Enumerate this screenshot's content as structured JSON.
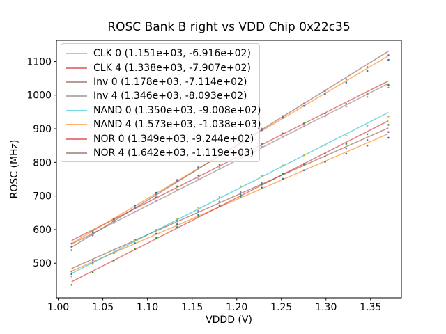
{
  "chart_data": {
    "type": "scatter",
    "title": "ROSC Bank B right vs VDD Chip 0x22c35",
    "xlabel": "VDDD (V)",
    "ylabel": "ROSC (MHz)",
    "xlim": [
      0.998,
      1.3845
    ],
    "ylim": [
      397,
      1163
    ],
    "grid": false,
    "legend_position": "upper left",
    "line_alpha": 0.6,
    "xticks": {
      "values": [
        1.0,
        1.05,
        1.1,
        1.15,
        1.2,
        1.25,
        1.3,
        1.35
      ],
      "labels": [
        "1.00",
        "1.05",
        "1.10",
        "1.15",
        "1.20",
        "1.25",
        "1.30",
        "1.35"
      ]
    },
    "yticks": {
      "values": [
        500,
        600,
        700,
        800,
        900,
        1000,
        1100
      ],
      "labels": [
        "500",
        "600",
        "700",
        "800",
        "900",
        "1000",
        "1100"
      ]
    },
    "x": [
      1.015,
      1.0387,
      1.0623,
      1.086,
      1.1097,
      1.1333,
      1.157,
      1.1807,
      1.2043,
      1.228,
      1.2517,
      1.2753,
      1.299,
      1.3227,
      1.3463,
      1.37
    ],
    "point_deviation": [
      -9,
      -4,
      -1,
      1,
      2,
      3,
      4,
      4,
      4,
      3,
      2,
      0,
      -2,
      -5,
      -8,
      -12
    ],
    "fit_note": "scatter points with linear fit lines; legend shows (slope, intercept) of each fit",
    "series": [
      {
        "name": "CLK 0",
        "label": "CLK 0 (1.151e+03, -6.916e+02)",
        "slope": 1151,
        "intercept": -691.6,
        "line_color": "#ff7f0e",
        "marker_color": "#1f77b4"
      },
      {
        "name": "CLK 4",
        "label": "CLK 4 (1.338e+03, -7.907e+02)",
        "slope": 1338,
        "intercept": -790.7,
        "line_color": "#d62728",
        "marker_color": "#2ca02c"
      },
      {
        "name": "Inv 0",
        "label": "Inv 0 (1.178e+03, -7.114e+02)",
        "slope": 1178,
        "intercept": -711.4,
        "line_color": "#8c564b",
        "marker_color": "#9467bd"
      },
      {
        "name": "Inv 4",
        "label": "Inv 4 (1.346e+03, -8.093e+02)",
        "slope": 1346,
        "intercept": -809.3,
        "line_color": "#7f7f7f",
        "marker_color": "#e377c2"
      },
      {
        "name": "NAND 0",
        "label": "NAND 0 (1.350e+03, -9.008e+02)",
        "slope": 1350,
        "intercept": -900.8,
        "line_color": "#17becf",
        "marker_color": "#bcbd22"
      },
      {
        "name": "NAND 4",
        "label": "NAND 4 (1.573e+03, -1.038e+03)",
        "slope": 1573,
        "intercept": -1038,
        "line_color": "#ff7f0e",
        "marker_color": "#1f77b4"
      },
      {
        "name": "NOR 0",
        "label": "NOR 0 (1.349e+03, -9.244e+02)",
        "slope": 1349,
        "intercept": -924.4,
        "line_color": "#d62728",
        "marker_color": "#2ca02c"
      },
      {
        "name": "NOR 4",
        "label": "NOR 4 (1.642e+03, -1.119e+03)",
        "slope": 1642,
        "intercept": -1119,
        "line_color": "#8c564b",
        "marker_color": "#9467bd"
      }
    ]
  }
}
